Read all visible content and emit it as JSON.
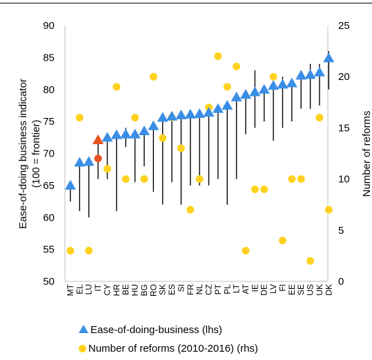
{
  "chart_data": {
    "type": "scatter",
    "title": "",
    "x": {
      "categories": [
        "MT",
        "EL",
        "LU",
        "IT",
        "CY",
        "HR",
        "BE",
        "HU",
        "BG",
        "RO",
        "SK",
        "ES",
        "SI",
        "FR",
        "NL",
        "CZ",
        "PT",
        "PL",
        "LT",
        "AT",
        "IE",
        "DE",
        "LV",
        "FI",
        "EE",
        "SE",
        "US",
        "UK",
        "DK"
      ]
    },
    "y_left": {
      "label_line1": "Ease-of-doing business indicator",
      "label_line2": "(100 = frontier)",
      "range": [
        50,
        90
      ],
      "ticks": [
        "50",
        "55",
        "60",
        "65",
        "70",
        "75",
        "80",
        "85",
        "90"
      ]
    },
    "y_right": {
      "label": "Number of reforms",
      "range": [
        0,
        25
      ],
      "ticks": [
        "0",
        "5",
        "10",
        "15",
        "20",
        "25"
      ]
    },
    "highlight_category": "IT",
    "series": [
      {
        "name": "Ease-of-doing-business (lhs)",
        "axis": "left",
        "marker": "triangle",
        "color": "#3A8EE6",
        "highlight_color": "#E8531E",
        "values": [
          65.0,
          68.6,
          68.7,
          72.1,
          72.5,
          72.9,
          73.0,
          73.0,
          73.5,
          74.3,
          75.6,
          75.8,
          76.0,
          76.1,
          76.2,
          76.4,
          77.0,
          77.5,
          78.8,
          79.2,
          79.6,
          80.0,
          80.6,
          80.8,
          81.0,
          82.2,
          82.3,
          82.7,
          84.9
        ]
      },
      {
        "name": "Number of reforms (2010-2016) (rhs)",
        "axis": "right",
        "marker": "circle",
        "color": "#FFD21F",
        "highlight_color": "#E8531E",
        "values": [
          3,
          16,
          3,
          12,
          11,
          19,
          10,
          16,
          10,
          20,
          14,
          16,
          13,
          7,
          10,
          17,
          22,
          19,
          21,
          3,
          9,
          9,
          20,
          4,
          10,
          10,
          2,
          16,
          7
        ]
      }
    ],
    "error_lines": {
      "color": "#000000",
      "low": [
        62.5,
        61.0,
        60.0,
        66.0,
        66.0,
        61.0,
        71.0,
        65.5,
        68.0,
        64.0,
        62.0,
        65.5,
        62.0,
        65.0,
        65.0,
        65.0,
        66.0,
        62.0,
        66.0,
        73.0,
        74.0,
        75.0,
        72.0,
        74.0,
        75.0,
        77.0,
        77.0,
        77.5,
        80.0
      ],
      "high": [
        65.0,
        68.6,
        68.7,
        72.1,
        72.5,
        72.9,
        74.0,
        73.0,
        73.5,
        74.3,
        75.6,
        75.8,
        76.0,
        76.1,
        76.2,
        76.4,
        77.0,
        77.5,
        78.8,
        79.2,
        83.0,
        80.0,
        81.0,
        82.0,
        81.0,
        83.0,
        84.0,
        84.0,
        86.0
      ]
    },
    "legend_position": "bottom",
    "grid": false
  }
}
